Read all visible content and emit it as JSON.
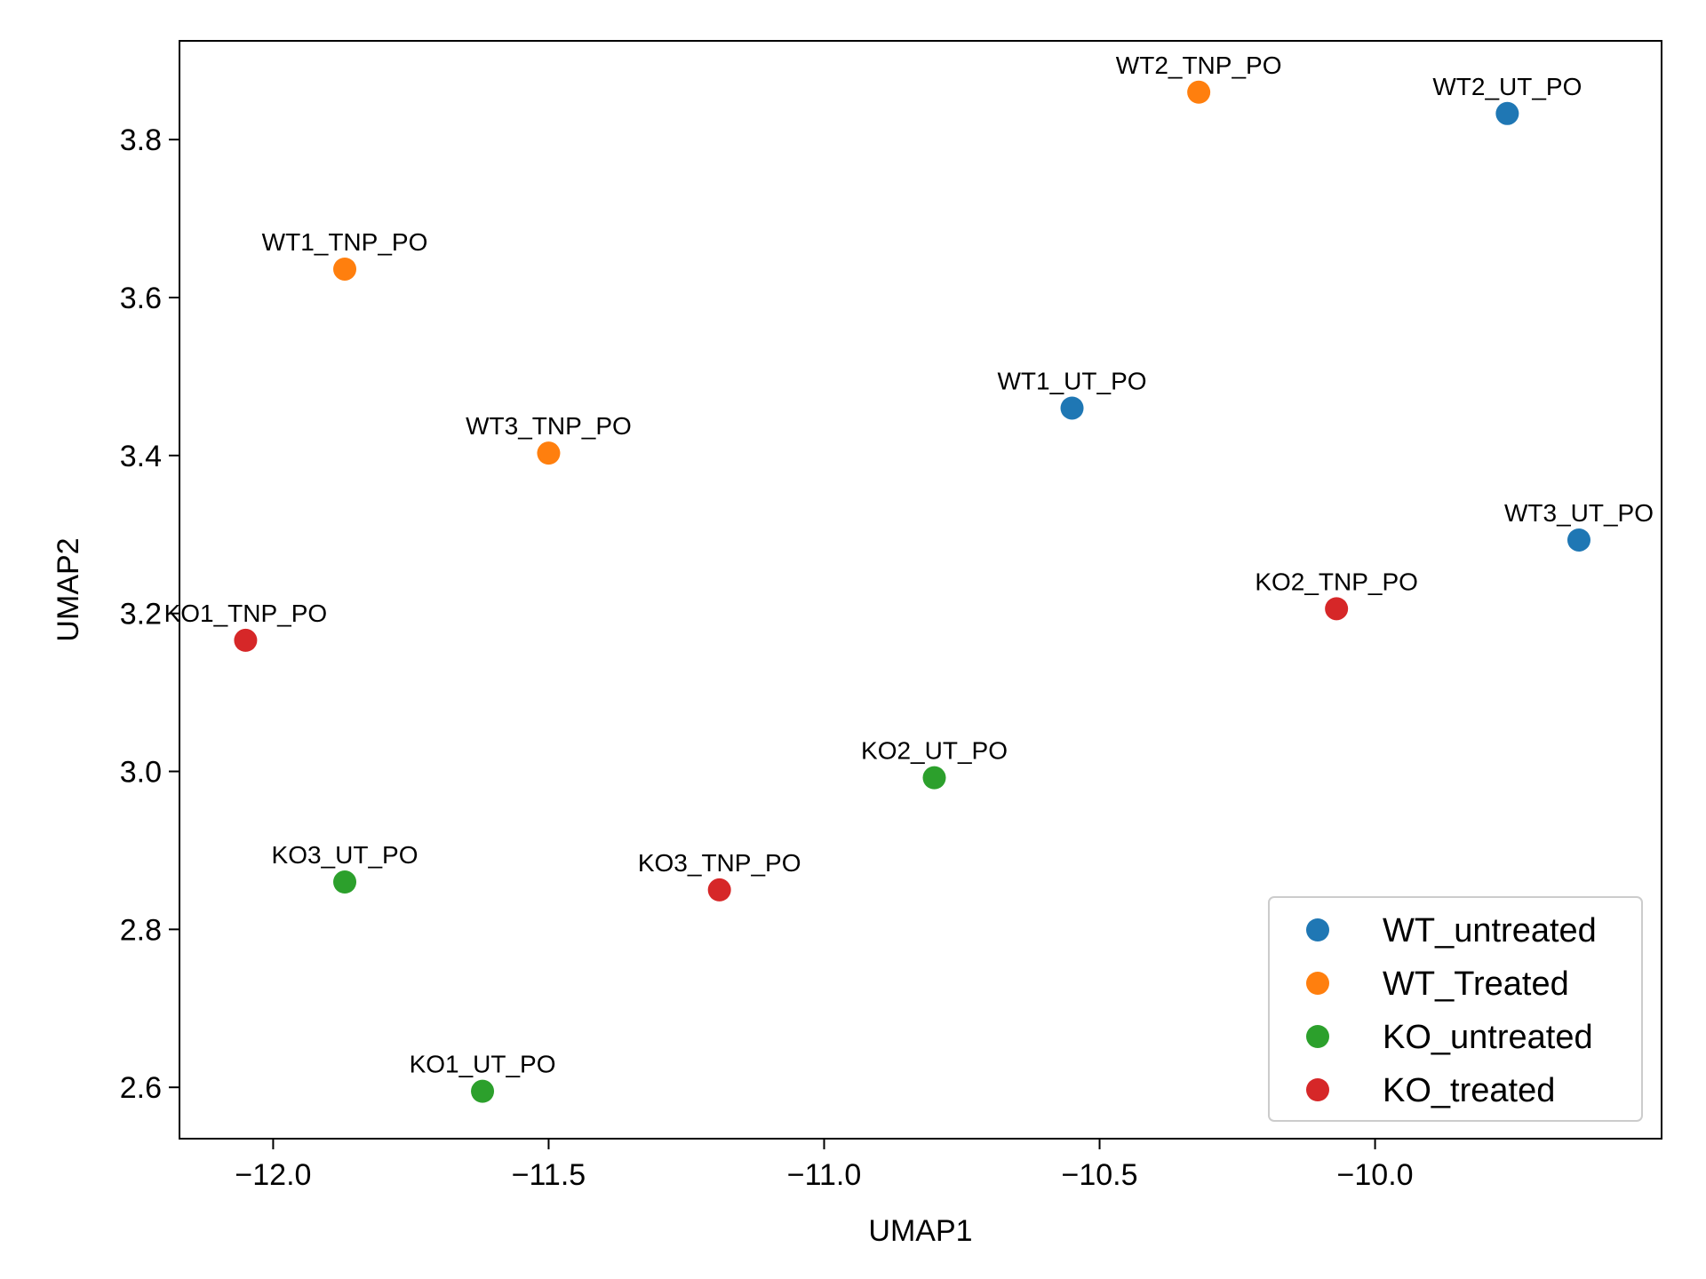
{
  "chart_data": {
    "type": "scatter",
    "title": "",
    "xlabel": "UMAP1",
    "ylabel": "UMAP2",
    "xlim": [
      -12.17,
      -9.48
    ],
    "ylim": [
      2.535,
      3.925
    ],
    "xticks": [
      -12.0,
      -11.5,
      -11.0,
      -10.5,
      -10.0
    ],
    "xtick_labels": [
      "−12.0",
      "−11.5",
      "−11.0",
      "−10.5",
      "−10.0"
    ],
    "yticks": [
      2.6,
      2.8,
      3.0,
      3.2,
      3.4,
      3.6,
      3.8
    ],
    "ytick_labels": [
      "2.6",
      "2.8",
      "3.0",
      "3.2",
      "3.4",
      "3.6",
      "3.8"
    ],
    "grid": false,
    "legend_position": "bottom-right",
    "series": [
      {
        "name": "WT_untreated",
        "color": "#1f77b4",
        "points": [
          {
            "x": -10.55,
            "y": 3.46,
            "label": "WT1_UT_PO"
          },
          {
            "x": -9.76,
            "y": 3.833,
            "label": "WT2_UT_PO"
          },
          {
            "x": -9.63,
            "y": 3.293,
            "label": "WT3_UT_PO"
          }
        ]
      },
      {
        "name": "WT_Treated",
        "color": "#ff7f0e",
        "points": [
          {
            "x": -11.87,
            "y": 3.636,
            "label": "WT1_TNP_PO"
          },
          {
            "x": -10.32,
            "y": 3.86,
            "label": "WT2_TNP_PO"
          },
          {
            "x": -11.5,
            "y": 3.403,
            "label": "WT3_TNP_PO"
          }
        ]
      },
      {
        "name": "KO_untreated",
        "color": "#2ca02c",
        "points": [
          {
            "x": -11.62,
            "y": 2.595,
            "label": "KO1_UT_PO"
          },
          {
            "x": -10.8,
            "y": 2.992,
            "label": "KO2_UT_PO"
          },
          {
            "x": -11.87,
            "y": 2.86,
            "label": "KO3_UT_PO"
          }
        ]
      },
      {
        "name": "KO_treated",
        "color": "#d62728",
        "points": [
          {
            "x": -12.05,
            "y": 3.166,
            "label": "KO1_TNP_PO"
          },
          {
            "x": -10.07,
            "y": 3.206,
            "label": "KO2_TNP_PO"
          },
          {
            "x": -11.19,
            "y": 2.85,
            "label": "KO3_TNP_PO"
          }
        ]
      }
    ]
  }
}
